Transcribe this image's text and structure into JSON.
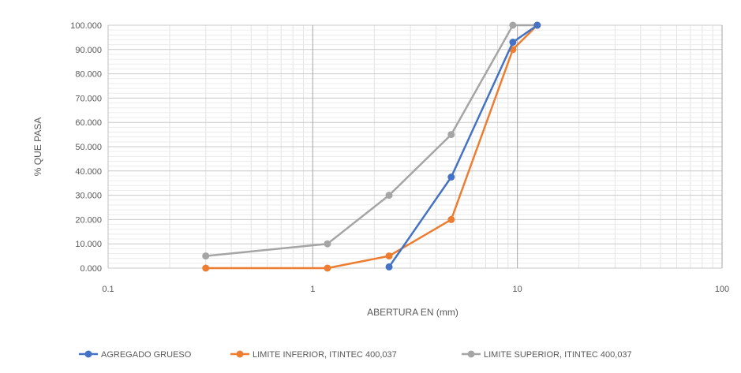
{
  "chart_data": {
    "type": "scatter",
    "title": "",
    "xlabel": "ABERTURA  EN (mm)",
    "ylabel": "% QUE PASA",
    "x_scale": "log",
    "xlim": [
      0.1,
      100
    ],
    "ylim": [
      0,
      100
    ],
    "x_ticks": [
      "0.1",
      "1",
      "10",
      "100"
    ],
    "y_ticks": [
      "0.000",
      "10.000",
      "20.000",
      "30.000",
      "40.000",
      "50.000",
      "60.000",
      "70.000",
      "80.000",
      "90.000",
      "100.000"
    ],
    "grid": true,
    "legend_position": "bottom",
    "series": [
      {
        "name": "AGREGADO GRUESO",
        "color": "#4472C4",
        "x": [
          2.36,
          4.75,
          9.5,
          12.5
        ],
        "y": [
          0.5,
          37.5,
          93.0,
          100.0
        ]
      },
      {
        "name": "LIMITE INFERIOR, ITINTEC 400,037",
        "color": "#ED7D31",
        "x": [
          0.3,
          1.18,
          2.36,
          4.75,
          9.5,
          12.5
        ],
        "y": [
          0,
          0,
          5,
          20,
          90,
          100
        ]
      },
      {
        "name": "LIMITE SUPERIOR, ITINTEC 400,037",
        "color": "#A5A5A5",
        "x": [
          0.3,
          1.18,
          2.36,
          4.75,
          9.5,
          12.5
        ],
        "y": [
          5,
          10,
          30,
          55,
          100,
          100
        ]
      }
    ]
  }
}
